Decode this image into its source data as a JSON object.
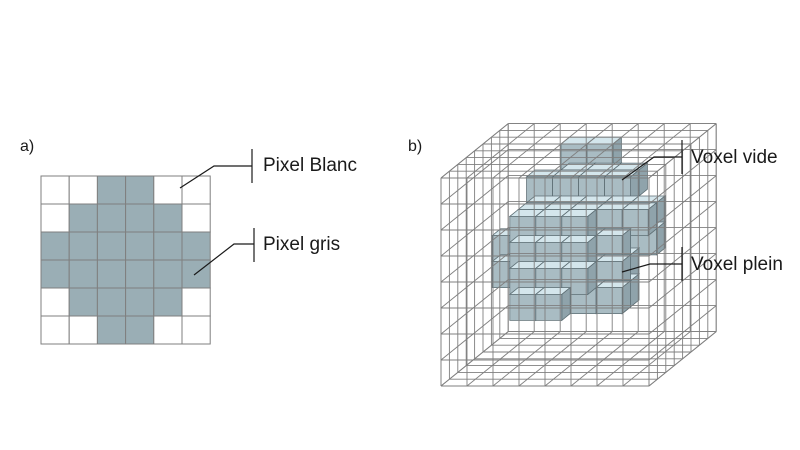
{
  "panel_a": {
    "label": "a)",
    "callouts": {
      "white_pixel": "Pixel Blanc",
      "gray_pixel": "Pixel gris"
    },
    "grid": [
      [
        0,
        0,
        1,
        1,
        0,
        0
      ],
      [
        0,
        1,
        1,
        1,
        1,
        0
      ],
      [
        1,
        1,
        1,
        1,
        1,
        1
      ],
      [
        1,
        1,
        1,
        1,
        1,
        1
      ],
      [
        0,
        1,
        1,
        1,
        1,
        0
      ],
      [
        0,
        0,
        1,
        1,
        0,
        0
      ]
    ]
  },
  "panel_b": {
    "label": "b)",
    "callouts": {
      "empty_voxel": "Voxel vide",
      "full_voxel": "Voxel plein"
    }
  },
  "colors": {
    "gray_fill": "#9aaeb5",
    "voxel_top": "#d4e6ec",
    "voxel_side": "#8fa3ab",
    "voxel_front": "#a9bcc3",
    "grid_line": "#7f7f7f"
  }
}
